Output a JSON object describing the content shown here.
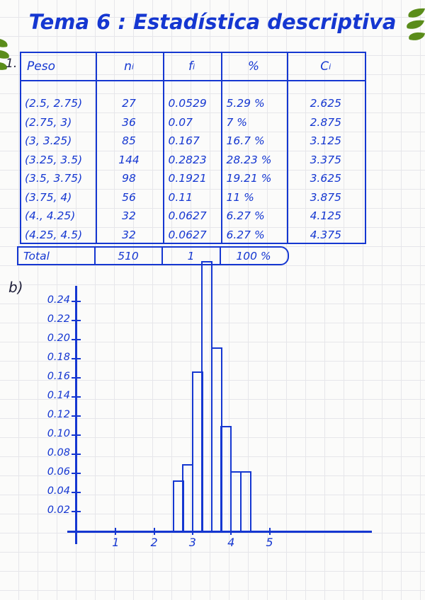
{
  "page": {
    "title": "Tema 6 : Estadística descriptiva",
    "exercise_label": "1.",
    "part_label": "b)"
  },
  "colors": {
    "ink": "#1537d1",
    "dark": "#20203a",
    "leaf": "#5a8c1a"
  },
  "table": {
    "headers": [
      {
        "t": "Peso",
        "s": ""
      },
      {
        "t": "n",
        "s": "i"
      },
      {
        "t": "f",
        "s": "i"
      },
      {
        "t": "%",
        "s": ""
      },
      {
        "t": "C",
        "s": "i"
      }
    ],
    "rows": [
      [
        "(2.5, 2.75)",
        "27",
        "0.0529",
        "5.29 %",
        "2.625"
      ],
      [
        "(2.75, 3)",
        "36",
        "0.07",
        "7 %",
        "2.875"
      ],
      [
        "(3, 3.25)",
        "85",
        "0.167",
        "16.7 %",
        "3.125"
      ],
      [
        "(3.25, 3.5)",
        "144",
        "0.2823",
        "28.23 %",
        "3.375"
      ],
      [
        "(3.5, 3.75)",
        "98",
        "0.1921",
        "19.21 %",
        "3.625"
      ],
      [
        "(3.75, 4)",
        "56",
        "0.11",
        "11 %",
        "3.875"
      ],
      [
        "(4., 4.25)",
        "32",
        "0.0627",
        "6.27 %",
        "4.125"
      ],
      [
        "(4.25, 4.5)",
        "32",
        "0.0627",
        "6.27 %",
        "4.375"
      ]
    ],
    "total_row": [
      "Total",
      "510",
      "1",
      "100 %"
    ]
  },
  "chart_data": {
    "type": "bar",
    "title": "",
    "xlabel": "",
    "ylabel": "",
    "bins": [
      [
        2.5,
        2.75
      ],
      [
        2.75,
        3
      ],
      [
        3,
        3.25
      ],
      [
        3.25,
        3.5
      ],
      [
        3.5,
        3.75
      ],
      [
        3.75,
        4
      ],
      [
        4,
        4.25
      ],
      [
        4.25,
        4.5
      ]
    ],
    "values": [
      0.0529,
      0.07,
      0.167,
      0.2823,
      0.1921,
      0.11,
      0.0627,
      0.0627
    ],
    "y_ticks": [
      0.02,
      0.04,
      0.06,
      0.08,
      0.1,
      0.12,
      0.14,
      0.16,
      0.18,
      0.2,
      0.22,
      0.24
    ],
    "y_tick_labels": [
      "0.02",
      "0.04",
      "0.06",
      "0.08",
      "0.10",
      "0.12",
      "0.14",
      "0.16",
      "0.18",
      "0.20",
      "0.22",
      "0.24"
    ],
    "x_ticks": [
      1,
      2,
      3,
      4,
      5
    ],
    "x_tick_labels": [
      "1",
      "2",
      "3",
      "4",
      "5"
    ],
    "xlim": [
      0,
      7.7
    ],
    "ylim": [
      0,
      0.26
    ],
    "grid": true,
    "legend": null
  }
}
